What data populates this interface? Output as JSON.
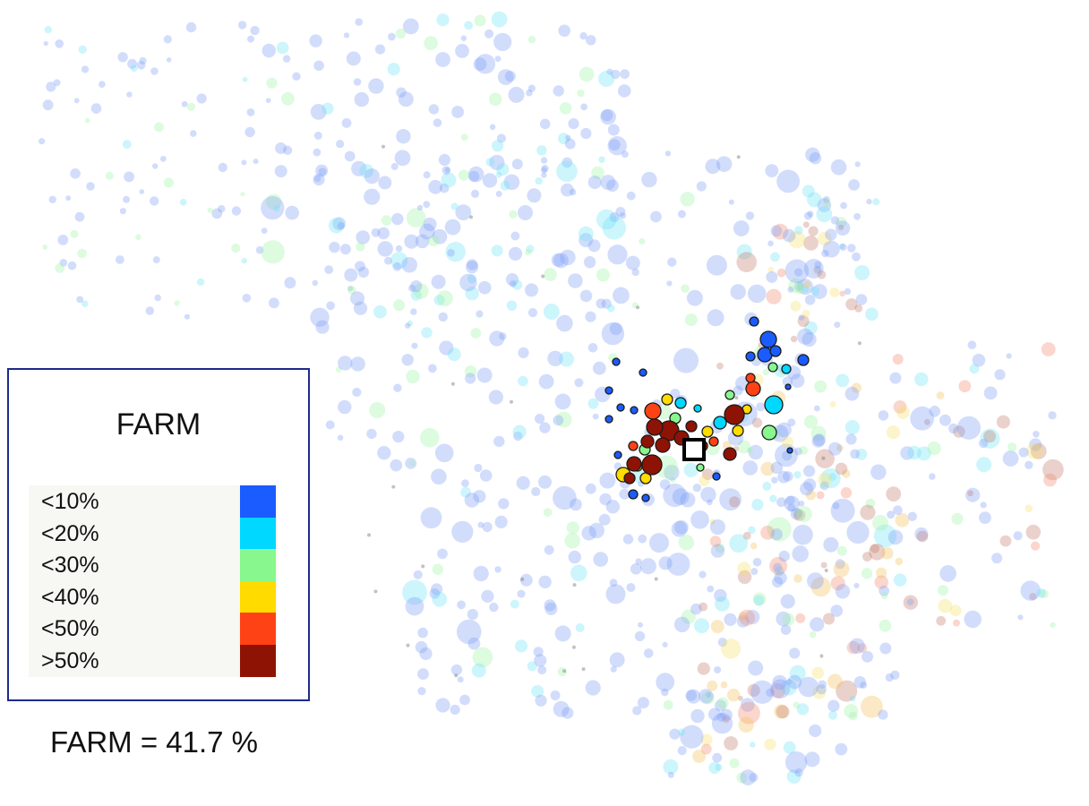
{
  "legend": {
    "title": "FARM",
    "items": [
      {
        "label": "<10%",
        "color": "#1a5cff"
      },
      {
        "label": "<20%",
        "color": "#00d8ff"
      },
      {
        "label": "<30%",
        "color": "#88f78e"
      },
      {
        "label": "<40%",
        "color": "#ffdb00"
      },
      {
        "label": ">50%",
        "color": "#8f1305",
        "_order": "placeholder"
      }
    ]
  },
  "summary": {
    "text": "FARM = 41.7 %"
  }
}
